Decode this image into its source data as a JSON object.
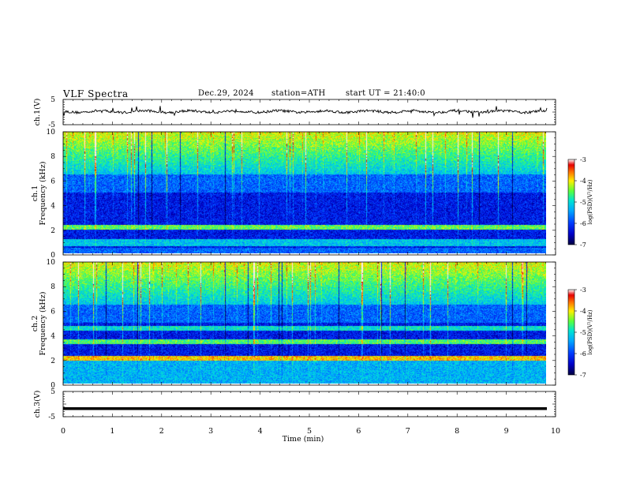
{
  "header": {
    "title": "VLF Spectra",
    "date": "Dec.29, 2024",
    "station": "station=ATH",
    "start_ut": "start UT = 21:40:0"
  },
  "colors": {
    "waveform": "#000000",
    "colormap": [
      "#000080",
      "#0000ff",
      "#00a0ff",
      "#00e8d8",
      "#40ff40",
      "#ffff00",
      "#ff8000",
      "#ff0000",
      "#ffffff"
    ]
  },
  "chart_data": [
    {
      "type": "line",
      "ylabel": "ch.1(V)",
      "ylim": [
        -5,
        5
      ],
      "yticks": [
        "5",
        "-5"
      ],
      "description": "noisy waveform centered near 0 V"
    },
    {
      "type": "heatmap",
      "ylabel": "ch.1\nFrequency (kHz)",
      "ylim": [
        0,
        10
      ],
      "yticks": [
        "0",
        "2",
        "4",
        "6",
        "8",
        "10"
      ],
      "colorbar": {
        "label": "log(PSD)(V²/Hz)",
        "range": [
          -7,
          -3
        ],
        "ticks": [
          "-3",
          "-4",
          "-5",
          "-6",
          "-7"
        ]
      }
    },
    {
      "type": "heatmap",
      "ylabel": "ch.2\nFrequency (kHz)",
      "ylim": [
        0,
        10
      ],
      "yticks": [
        "0",
        "2",
        "4",
        "6",
        "8",
        "10"
      ],
      "colorbar": {
        "label": "log(PSD)(V²/Hz)",
        "range": [
          -7,
          -3
        ],
        "ticks": [
          "-3",
          "-4",
          "-5",
          "-6",
          "-7"
        ]
      }
    },
    {
      "type": "line",
      "ylabel": "ch.3(V)",
      "ylim": [
        -5,
        5
      ],
      "yticks": [
        "5",
        "-5"
      ],
      "description": "flat trace near -2 V"
    }
  ],
  "xaxis": {
    "label": "Time (min)",
    "range": [
      0,
      10
    ],
    "ticks": [
      "0",
      "1",
      "2",
      "3",
      "4",
      "5",
      "6",
      "7",
      "8",
      "9",
      "10"
    ]
  }
}
